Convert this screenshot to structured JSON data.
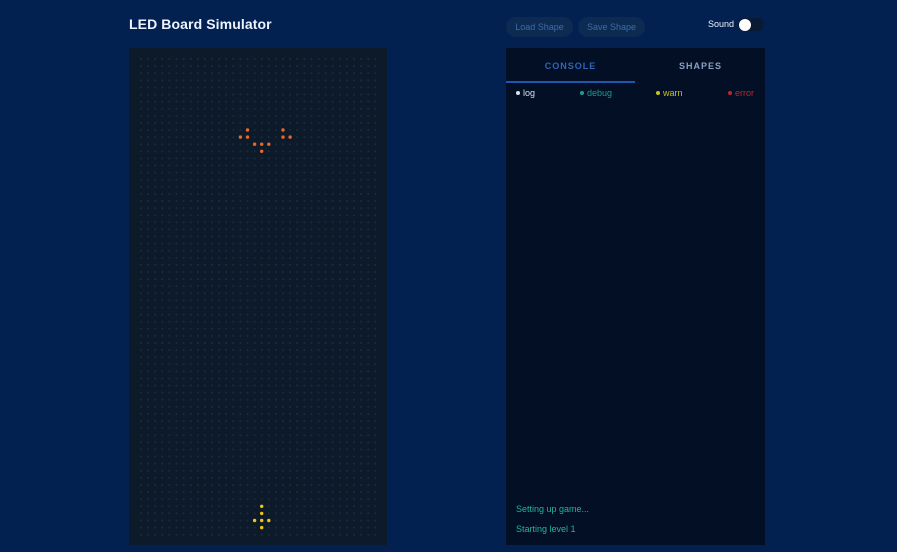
{
  "app": {
    "title": "LED Board Simulator"
  },
  "toolbar": {
    "load_label": "Load Shape",
    "save_label": "Save Shape",
    "sound_label": "Sound",
    "sound_enabled": false
  },
  "board": {
    "columns": 34,
    "rows": 68,
    "background": "#0c1a2a",
    "off_led_color": "#1a2a3a",
    "shapes": [
      {
        "name": "enemy",
        "color": "#e8682a",
        "cells": [
          [
            15,
            10
          ],
          [
            20,
            10
          ],
          [
            15,
            11
          ],
          [
            14,
            11
          ],
          [
            20,
            11
          ],
          [
            21,
            11
          ],
          [
            16,
            12
          ],
          [
            17,
            12
          ],
          [
            18,
            12
          ],
          [
            17,
            13
          ]
        ]
      },
      {
        "name": "player",
        "color": "#f1c40f",
        "cells": [
          [
            17,
            63
          ],
          [
            17,
            64
          ],
          [
            16,
            65
          ],
          [
            17,
            65
          ],
          [
            18,
            65
          ],
          [
            17,
            66
          ]
        ]
      }
    ]
  },
  "panel": {
    "tabs": [
      {
        "label": "CONSOLE",
        "active": true
      },
      {
        "label": "SHAPES",
        "active": false
      }
    ],
    "filters": [
      {
        "label": "log",
        "color": "#d9e2ef"
      },
      {
        "label": "debug",
        "color": "#1d9d8d"
      },
      {
        "label": "warn",
        "color": "#c7c21f"
      },
      {
        "label": "error",
        "color": "#c0242d"
      }
    ],
    "log_lines": [
      "Setting up game...",
      "Starting level 1"
    ]
  }
}
